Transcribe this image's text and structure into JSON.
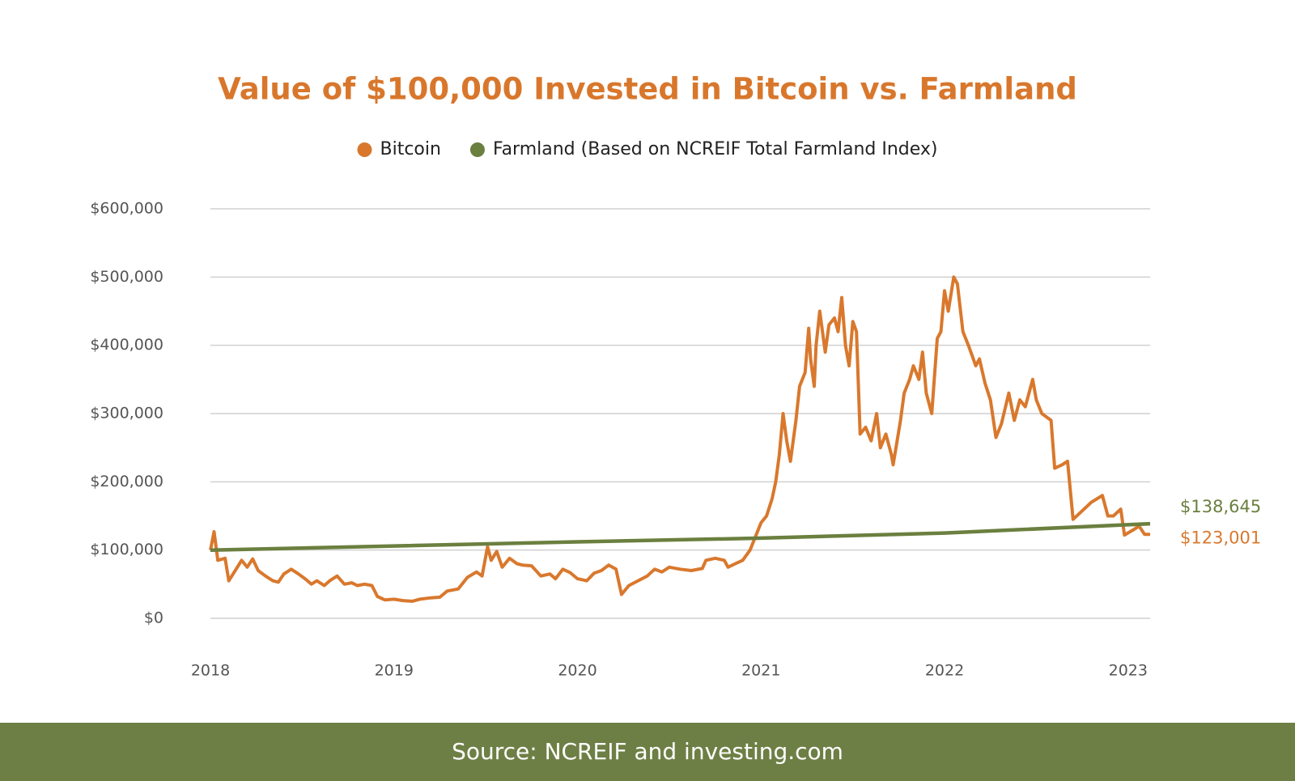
{
  "chart_data": {
    "type": "line",
    "title": "Value of $100,000 Invested in Bitcoin vs. Farmland",
    "source": "Source: NCREIF and investing.com",
    "xlim": [
      2018,
      2023.12
    ],
    "xticks": [
      2018,
      2019,
      2020,
      2021,
      2022,
      2023
    ],
    "ylim": [
      0,
      600000
    ],
    "yticks": [
      {
        "value": 0,
        "label": "$0"
      },
      {
        "value": 100000,
        "label": "$100,000"
      },
      {
        "value": 200000,
        "label": "$200,000"
      },
      {
        "value": 300000,
        "label": "$300,000"
      },
      {
        "value": 400000,
        "label": "$400,000"
      },
      {
        "value": 500000,
        "label": "$500,000"
      },
      {
        "value": 600000,
        "label": "$600,000"
      }
    ],
    "grid": true,
    "legend": "top",
    "series": [
      {
        "name": "Bitcoin",
        "color": "#d9782d",
        "last_label": "$123,001",
        "x": [
          2018.0,
          2018.02,
          2018.04,
          2018.08,
          2018.1,
          2018.14,
          2018.17,
          2018.2,
          2018.23,
          2018.26,
          2018.3,
          2018.34,
          2018.37,
          2018.4,
          2018.44,
          2018.48,
          2018.52,
          2018.55,
          2018.58,
          2018.62,
          2018.65,
          2018.69,
          2018.73,
          2018.77,
          2018.8,
          2018.84,
          2018.88,
          2018.91,
          2018.95,
          2019.0,
          2019.05,
          2019.1,
          2019.14,
          2019.2,
          2019.25,
          2019.29,
          2019.35,
          2019.4,
          2019.45,
          2019.48,
          2019.51,
          2019.53,
          2019.56,
          2019.59,
          2019.63,
          2019.67,
          2019.7,
          2019.75,
          2019.8,
          2019.85,
          2019.88,
          2019.92,
          2019.96,
          2020.0,
          2020.05,
          2020.09,
          2020.13,
          2020.17,
          2020.21,
          2020.24,
          2020.28,
          2020.33,
          2020.38,
          2020.42,
          2020.46,
          2020.5,
          2020.56,
          2020.62,
          2020.68,
          2020.7,
          2020.75,
          2020.8,
          2020.82,
          2020.86,
          2020.9,
          2020.94,
          2020.97,
          2021.0,
          2021.03,
          2021.06,
          2021.08,
          2021.1,
          2021.12,
          2021.14,
          2021.16,
          2021.19,
          2021.21,
          2021.24,
          2021.26,
          2021.27,
          2021.29,
          2021.3,
          2021.32,
          2021.35,
          2021.37,
          2021.4,
          2021.42,
          2021.44,
          2021.46,
          2021.48,
          2021.5,
          2021.52,
          2021.54,
          2021.57,
          2021.6,
          2021.63,
          2021.65,
          2021.68,
          2021.71,
          2021.72,
          2021.76,
          2021.78,
          2021.81,
          2021.83,
          2021.86,
          2021.88,
          2021.9,
          2021.93,
          2021.96,
          2021.98,
          2022.0,
          2022.02,
          2022.05,
          2022.07,
          2022.1,
          2022.13,
          2022.17,
          2022.19,
          2022.22,
          2022.25,
          2022.28,
          2022.31,
          2022.35,
          2022.38,
          2022.41,
          2022.44,
          2022.48,
          2022.5,
          2022.53,
          2022.58,
          2022.6,
          2022.64,
          2022.67,
          2022.7,
          2022.74,
          2022.8,
          2022.86,
          2022.89,
          2022.92,
          2022.96,
          2022.98,
          2023.03,
          2023.06,
          2023.09,
          2023.12
        ],
        "values": [
          100000,
          127000,
          85000,
          88000,
          55000,
          72000,
          85000,
          75000,
          87000,
          70000,
          62000,
          55000,
          53000,
          65000,
          72000,
          65000,
          57000,
          50000,
          55000,
          48000,
          55000,
          62000,
          50000,
          52000,
          48000,
          50000,
          48000,
          32000,
          27000,
          28000,
          26000,
          25000,
          28000,
          30000,
          31000,
          40000,
          43000,
          60000,
          68000,
          62000,
          105000,
          85000,
          98000,
          75000,
          88000,
          80000,
          78000,
          77000,
          62000,
          65000,
          58000,
          72000,
          67000,
          58000,
          55000,
          66000,
          70000,
          78000,
          72000,
          35000,
          48000,
          55000,
          62000,
          72000,
          68000,
          75000,
          72000,
          70000,
          73000,
          85000,
          88000,
          85000,
          75000,
          80000,
          85000,
          100000,
          120000,
          140000,
          150000,
          175000,
          200000,
          240000,
          300000,
          260000,
          230000,
          290000,
          340000,
          360000,
          425000,
          380000,
          340000,
          400000,
          450000,
          390000,
          430000,
          440000,
          420000,
          470000,
          400000,
          370000,
          435000,
          420000,
          270000,
          280000,
          260000,
          300000,
          250000,
          270000,
          240000,
          225000,
          290000,
          330000,
          350000,
          370000,
          350000,
          390000,
          330000,
          300000,
          410000,
          420000,
          480000,
          450000,
          500000,
          490000,
          420000,
          400000,
          370000,
          380000,
          345000,
          320000,
          265000,
          285000,
          330000,
          290000,
          320000,
          310000,
          350000,
          320000,
          300000,
          290000,
          220000,
          225000,
          230000,
          145000,
          155000,
          170000,
          180000,
          150000,
          150000,
          160000,
          122000,
          130000,
          135000,
          123000,
          123001
        ]
      },
      {
        "name": "Farmland (Based on NCREIF Total Farmland Index)",
        "color": "#6b7f3f",
        "last_label": "$138,645",
        "x": [
          2018,
          2019,
          2020,
          2021,
          2022,
          2023.12
        ],
        "values": [
          100000,
          106000,
          112000,
          117500,
          125000,
          138645
        ]
      }
    ]
  }
}
